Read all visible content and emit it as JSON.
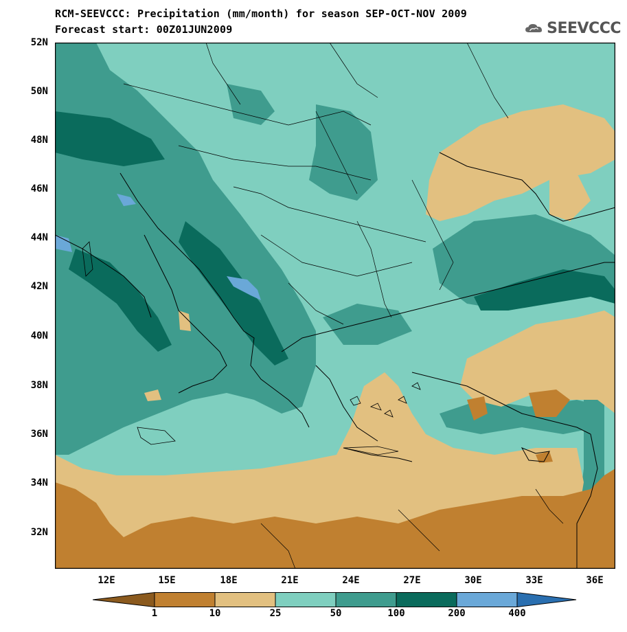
{
  "title": {
    "line1": "RCM-SEEVCCC: Precipitation (mm/month) for season SEP-OCT-NOV 2009",
    "line2": "Forecast start: 00Z01JUN2009"
  },
  "logo": {
    "text": "SEEVCCC",
    "icon": "cloud-icon"
  },
  "map": {
    "lat_labels": [
      "52N",
      "50N",
      "48N",
      "46N",
      "44N",
      "42N",
      "40N",
      "38N",
      "36N",
      "34N",
      "32N"
    ],
    "lon_labels": [
      "12E",
      "15E",
      "18E",
      "21E",
      "24E",
      "27E",
      "30E",
      "33E",
      "36E"
    ],
    "background_color": "#7fcfbf"
  },
  "colorbar": {
    "labels": [
      "1",
      "10",
      "25",
      "50",
      "100",
      "200",
      "400"
    ],
    "colors": [
      "#8b5a1e",
      "#c08030",
      "#e2c080",
      "#7fcfbf",
      "#3f9c8e",
      "#0a6b5c",
      "#6aa8d8",
      "#2a6fb0"
    ]
  }
}
